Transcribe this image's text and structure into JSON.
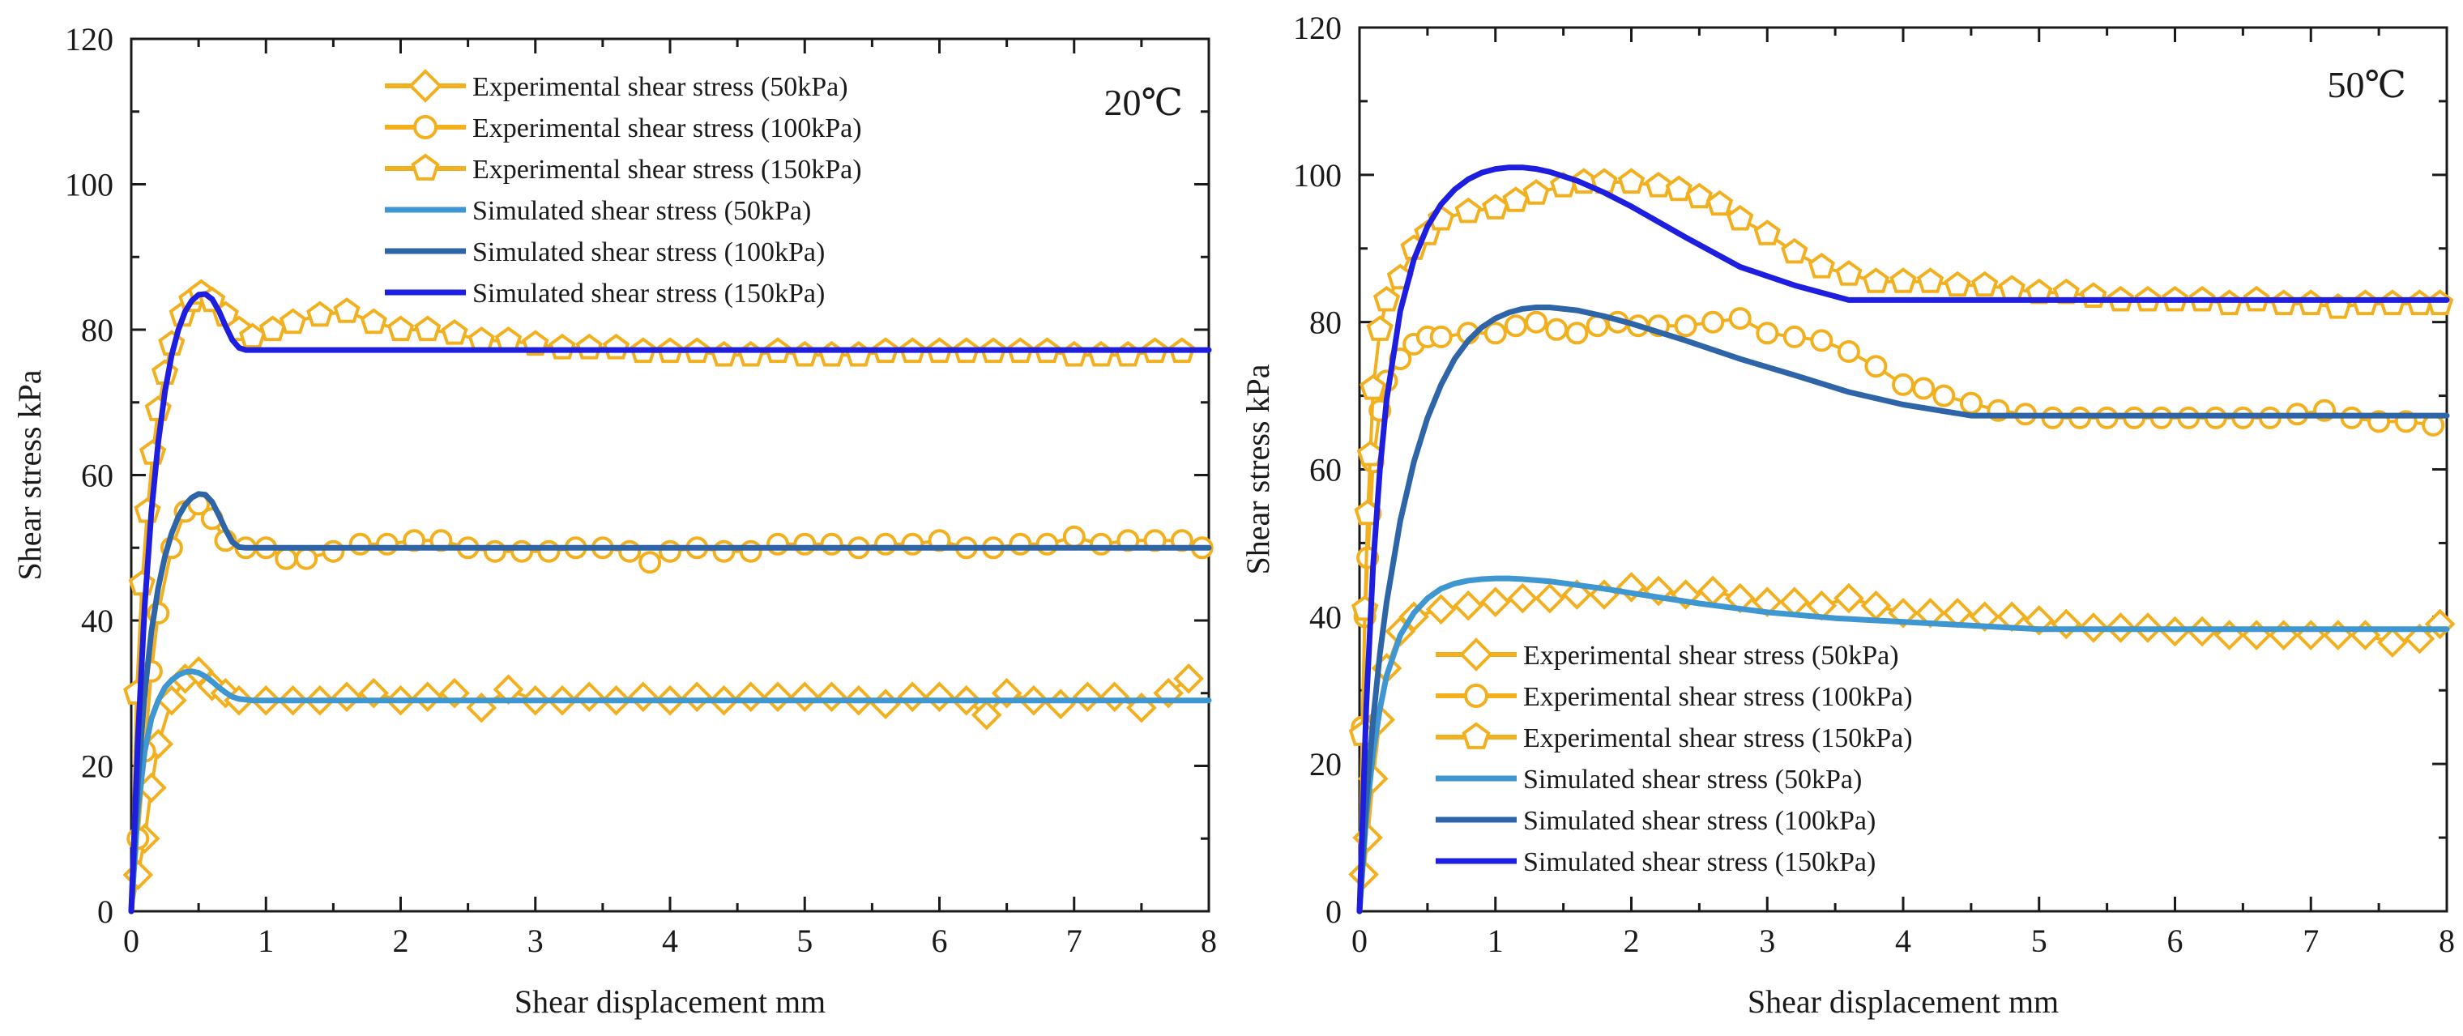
{
  "chart_data": [
    {
      "type": "line",
      "annotation": "20℃",
      "xlabel": "Shear displacement mm",
      "ylabel": "Shear stress kPa",
      "xlim": [
        0,
        8
      ],
      "ylim": [
        0,
        120
      ],
      "x_ticks": [
        "0",
        "1",
        "2",
        "3",
        "4",
        "5",
        "6",
        "7",
        "8"
      ],
      "y_ticks": [
        "0",
        "20",
        "40",
        "60",
        "80",
        "100",
        "120"
      ],
      "grid": false,
      "legend_position": "top-center",
      "series": [
        {
          "name": "Experimental shear stress (50kPa)",
          "kind": "experimental",
          "marker": "diamond",
          "color": "#F2B01E",
          "x": [
            0,
            0.05,
            0.1,
            0.15,
            0.2,
            0.3,
            0.4,
            0.5,
            0.6,
            0.7,
            0.8,
            1.0,
            1.2,
            1.4,
            1.6,
            1.8,
            2.0,
            2.2,
            2.4,
            2.6,
            2.8,
            3.0,
            3.2,
            3.4,
            3.6,
            3.8,
            4.0,
            4.2,
            4.4,
            4.6,
            4.8,
            5.0,
            5.2,
            5.4,
            5.6,
            5.8,
            6.0,
            6.2,
            6.35,
            6.5,
            6.7,
            6.9,
            7.1,
            7.3,
            7.5,
            7.7,
            7.85
          ],
          "y": [
            0,
            5,
            10,
            17,
            23,
            29,
            32,
            33,
            31,
            30,
            29,
            29,
            29,
            29,
            29.5,
            30,
            29,
            29.5,
            30,
            28,
            30.5,
            29,
            29,
            29.5,
            29,
            29.5,
            29,
            29.5,
            29,
            29.5,
            29.5,
            29.5,
            29.5,
            29,
            28.5,
            29.5,
            29.5,
            29,
            27,
            30,
            29,
            28.5,
            29.5,
            29.5,
            28,
            30,
            32
          ]
        },
        {
          "name": "Experimental shear stress (100kPa)",
          "kind": "experimental",
          "marker": "circle",
          "color": "#F2B01E",
          "x": [
            0,
            0.05,
            0.1,
            0.15,
            0.2,
            0.3,
            0.4,
            0.5,
            0.6,
            0.7,
            0.85,
            1.0,
            1.15,
            1.3,
            1.5,
            1.7,
            1.9,
            2.1,
            2.3,
            2.5,
            2.7,
            2.9,
            3.1,
            3.3,
            3.5,
            3.7,
            3.85,
            4.0,
            4.2,
            4.4,
            4.6,
            4.8,
            5.0,
            5.2,
            5.4,
            5.6,
            5.8,
            6.0,
            6.2,
            6.4,
            6.6,
            6.8,
            7.0,
            7.2,
            7.4,
            7.6,
            7.8,
            7.95
          ],
          "y": [
            0,
            10,
            22,
            33,
            41,
            50,
            55,
            56,
            54,
            51,
            50,
            50,
            48.5,
            48.5,
            49.5,
            50.5,
            50.5,
            51,
            51,
            50,
            49.5,
            49.5,
            49.5,
            50,
            50,
            49.5,
            48,
            49.5,
            50,
            49.5,
            49.5,
            50.5,
            50.5,
            50.5,
            50,
            50.5,
            50.5,
            51,
            50,
            50,
            50.5,
            50.5,
            51.5,
            50.5,
            51,
            51,
            51,
            50
          ]
        },
        {
          "name": "Experimental shear stress (150kPa)",
          "kind": "experimental",
          "marker": "pentagon",
          "color": "#F2B01E",
          "x": [
            0,
            0.04,
            0.08,
            0.12,
            0.16,
            0.2,
            0.25,
            0.3,
            0.38,
            0.45,
            0.52,
            0.6,
            0.7,
            0.8,
            0.9,
            1.05,
            1.2,
            1.4,
            1.6,
            1.8,
            2.0,
            2.2,
            2.4,
            2.6,
            2.8,
            3.0,
            3.2,
            3.4,
            3.6,
            3.8,
            4.0,
            4.2,
            4.4,
            4.6,
            4.8,
            5.0,
            5.2,
            5.4,
            5.6,
            5.8,
            6.0,
            6.2,
            6.4,
            6.6,
            6.8,
            7.0,
            7.2,
            7.4,
            7.6,
            7.8
          ],
          "y": [
            0,
            30,
            45,
            55,
            63,
            69,
            74,
            78,
            82,
            84,
            85,
            84,
            82,
            80,
            79,
            80,
            81,
            82,
            82.5,
            81,
            80,
            80,
            79.5,
            78.5,
            78.5,
            78,
            77.5,
            77.5,
            77.5,
            77,
            77,
            77,
            76.5,
            76.5,
            77,
            76.5,
            76.5,
            76.5,
            77,
            77,
            77,
            77,
            77,
            77,
            77,
            76.5,
            76.5,
            76.5,
            77,
            77
          ]
        },
        {
          "name": "Simulated shear stress (50kPa)",
          "kind": "simulated",
          "color": "#3E97D1",
          "x": [
            0,
            0.05,
            0.1,
            0.15,
            0.2,
            0.25,
            0.3,
            0.35,
            0.4,
            0.45,
            0.5,
            0.55,
            0.6,
            0.65,
            0.7,
            0.75,
            0.8,
            0.9,
            1.0,
            2.0,
            4.0,
            6.0,
            8.0
          ],
          "y": [
            0,
            14,
            22,
            26.5,
            29,
            30.8,
            31.8,
            32.5,
            32.9,
            33,
            32.8,
            32.3,
            31.6,
            30.8,
            30.1,
            29.5,
            29.2,
            29,
            29,
            29,
            29,
            29,
            29
          ]
        },
        {
          "name": "Simulated shear stress (100kPa)",
          "kind": "simulated",
          "color": "#2E64A8",
          "x": [
            0,
            0.05,
            0.1,
            0.15,
            0.2,
            0.25,
            0.3,
            0.35,
            0.4,
            0.45,
            0.5,
            0.55,
            0.6,
            0.65,
            0.7,
            0.75,
            0.8,
            0.85,
            0.9,
            1.0,
            2.0,
            4.0,
            6.0,
            8.0
          ],
          "y": [
            0,
            18,
            30,
            38.5,
            44.5,
            48.8,
            52,
            54.3,
            55.9,
            56.9,
            57.4,
            57.3,
            56.3,
            54.5,
            52.5,
            50.8,
            50.1,
            50,
            50,
            50,
            50,
            50,
            50,
            50
          ]
        },
        {
          "name": "Simulated shear stress (150kPa)",
          "kind": "simulated",
          "color": "#1E1EE0",
          "x": [
            0,
            0.05,
            0.1,
            0.15,
            0.2,
            0.25,
            0.3,
            0.35,
            0.4,
            0.45,
            0.5,
            0.55,
            0.6,
            0.65,
            0.7,
            0.75,
            0.8,
            0.85,
            0.9,
            1.0,
            2.0,
            4.0,
            6.0,
            8.0
          ],
          "y": [
            0,
            24,
            42,
            55,
            64.5,
            71.5,
            76.5,
            80,
            82.5,
            84,
            84.8,
            84.9,
            84.2,
            82.6,
            80.5,
            78.6,
            77.5,
            77.2,
            77.2,
            77.2,
            77.2,
            77.2,
            77.2,
            77.2
          ]
        }
      ]
    },
    {
      "type": "line",
      "annotation": "50℃",
      "xlabel": "Shear displacement mm",
      "ylabel": "Shear stress kPa",
      "xlim": [
        0,
        8
      ],
      "ylim": [
        0,
        120
      ],
      "x_ticks": [
        "0",
        "1",
        "2",
        "3",
        "4",
        "5",
        "6",
        "7",
        "8"
      ],
      "y_ticks": [
        "0",
        "20",
        "40",
        "60",
        "80",
        "100",
        "120"
      ],
      "grid": false,
      "legend_position": "bottom-center",
      "series": [
        {
          "name": "Experimental shear stress (50kPa)",
          "kind": "experimental",
          "marker": "diamond",
          "color": "#F2B01E",
          "x": [
            0,
            0.03,
            0.06,
            0.1,
            0.15,
            0.2,
            0.3,
            0.4,
            0.6,
            0.8,
            1.0,
            1.2,
            1.4,
            1.6,
            1.8,
            2.0,
            2.2,
            2.4,
            2.6,
            2.8,
            3.0,
            3.2,
            3.4,
            3.6,
            3.8,
            4.0,
            4.2,
            4.4,
            4.6,
            4.8,
            5.0,
            5.2,
            5.4,
            5.6,
            5.8,
            6.0,
            6.2,
            6.4,
            6.6,
            6.8,
            7.0,
            7.2,
            7.4,
            7.6,
            7.8,
            7.95
          ],
          "y": [
            0,
            5,
            10,
            18,
            26,
            33,
            38,
            40,
            41,
            41.5,
            42,
            42.5,
            42.5,
            43,
            43,
            44,
            43.5,
            43,
            43.5,
            42.5,
            42,
            42,
            41.5,
            42.5,
            41.5,
            40.5,
            40.5,
            40.5,
            40,
            40,
            39.5,
            39,
            38.5,
            38.5,
            38.5,
            38,
            38,
            37.5,
            37.5,
            37.5,
            37.5,
            37.5,
            37.5,
            36.5,
            37,
            39
          ]
        },
        {
          "name": "Experimental shear stress (100kPa)",
          "kind": "experimental",
          "marker": "circle",
          "color": "#F2B01E",
          "x": [
            0,
            0.02,
            0.04,
            0.06,
            0.08,
            0.1,
            0.15,
            0.2,
            0.3,
            0.4,
            0.5,
            0.6,
            0.8,
            1.0,
            1.15,
            1.3,
            1.45,
            1.6,
            1.75,
            1.9,
            2.05,
            2.2,
            2.4,
            2.6,
            2.8,
            3.0,
            3.2,
            3.4,
            3.6,
            3.8,
            4.0,
            4.15,
            4.3,
            4.5,
            4.7,
            4.9,
            5.1,
            5.3,
            5.5,
            5.7,
            5.9,
            6.1,
            6.3,
            6.5,
            6.7,
            6.9,
            7.1,
            7.3,
            7.5,
            7.7,
            7.9
          ],
          "y": [
            0,
            25,
            40,
            48,
            54,
            61,
            68,
            72,
            75,
            77,
            78,
            78,
            78.5,
            78.5,
            79.5,
            80,
            79,
            78.5,
            79.5,
            80,
            79.5,
            79.5,
            79.5,
            80,
            80.5,
            78.5,
            78,
            77.5,
            76,
            74,
            71.5,
            71,
            70,
            69,
            68,
            67.5,
            67,
            67,
            67,
            67,
            67,
            67,
            67,
            67,
            67,
            67.5,
            68,
            67,
            66.5,
            66.5,
            66
          ]
        },
        {
          "name": "Experimental shear stress (150kPa)",
          "kind": "experimental",
          "marker": "pentagon",
          "color": "#F2B01E",
          "x": [
            0,
            0.02,
            0.04,
            0.06,
            0.08,
            0.1,
            0.15,
            0.2,
            0.3,
            0.4,
            0.5,
            0.6,
            0.8,
            1.0,
            1.15,
            1.3,
            1.5,
            1.65,
            1.8,
            2.0,
            2.2,
            2.35,
            2.5,
            2.65,
            2.8,
            3.0,
            3.2,
            3.4,
            3.6,
            3.8,
            4.0,
            4.2,
            4.4,
            4.6,
            4.8,
            5.0,
            5.2,
            5.4,
            5.6,
            5.8,
            6.0,
            6.2,
            6.4,
            6.6,
            6.8,
            7.0,
            7.2,
            7.4,
            7.6,
            7.8,
            7.95
          ],
          "y": [
            0,
            24,
            41,
            54,
            62,
            71,
            79,
            83,
            86,
            90,
            92,
            94,
            95,
            95.5,
            96.5,
            97.5,
            98.5,
            99,
            99,
            99,
            98.5,
            98,
            97,
            96,
            94,
            92,
            89.5,
            87.5,
            86.5,
            85.5,
            85.5,
            85.5,
            85,
            85,
            84.5,
            84,
            84,
            83.5,
            83,
            83,
            83,
            83,
            82.5,
            83,
            82.5,
            82.5,
            82,
            82.5,
            82.5,
            82.5,
            82.5
          ]
        },
        {
          "name": "Simulated shear stress (50kPa)",
          "kind": "simulated",
          "color": "#3E97D1",
          "x": [
            0,
            0.05,
            0.1,
            0.15,
            0.2,
            0.3,
            0.4,
            0.5,
            0.6,
            0.7,
            0.8,
            0.9,
            1.0,
            1.1,
            1.2,
            1.4,
            1.6,
            1.8,
            2.0,
            2.5,
            3.0,
            3.5,
            4.0,
            4.5,
            5.0,
            5.5,
            6.0,
            7.0,
            8.0
          ],
          "y": [
            0,
            13,
            21.5,
            27.5,
            32,
            37.5,
            40.5,
            42.5,
            43.8,
            44.5,
            44.9,
            45.1,
            45.2,
            45.2,
            45.1,
            44.8,
            44.3,
            43.8,
            43.2,
            41.8,
            40.6,
            39.8,
            39.3,
            38.8,
            38.3,
            38.3,
            38.3,
            38.3,
            38.3
          ]
        },
        {
          "name": "Simulated shear stress (100kPa)",
          "kind": "simulated",
          "color": "#2E64A8",
          "x": [
            0,
            0.05,
            0.1,
            0.15,
            0.2,
            0.3,
            0.4,
            0.5,
            0.6,
            0.7,
            0.8,
            0.9,
            1.0,
            1.1,
            1.2,
            1.3,
            1.4,
            1.6,
            1.8,
            2.0,
            2.4,
            2.8,
            3.2,
            3.6,
            4.0,
            4.5,
            5.0,
            6.0,
            7.0,
            8.0
          ],
          "y": [
            0,
            15,
            26,
            35,
            42,
            53,
            61,
            67,
            71.5,
            75,
            77.5,
            79.3,
            80.5,
            81.3,
            81.8,
            82,
            82,
            81.6,
            80.8,
            79.8,
            77.5,
            75,
            72.8,
            70.5,
            68.8,
            67.3,
            67.3,
            67.3,
            67.3,
            67.3
          ]
        },
        {
          "name": "Simulated shear stress (150kPa)",
          "kind": "simulated",
          "color": "#1E1EE0",
          "x": [
            0,
            0.05,
            0.1,
            0.15,
            0.2,
            0.3,
            0.4,
            0.5,
            0.6,
            0.7,
            0.8,
            0.9,
            1.0,
            1.1,
            1.2,
            1.3,
            1.4,
            1.6,
            1.8,
            2.0,
            2.4,
            2.8,
            3.2,
            3.6,
            4.0,
            5.0,
            6.0,
            7.0,
            8.0
          ],
          "y": [
            0,
            28,
            47,
            60,
            69.5,
            81.5,
            88.5,
            93,
            96,
            98,
            99.4,
            100.3,
            100.8,
            101,
            101,
            100.8,
            100.4,
            99.2,
            97.6,
            95.7,
            91.5,
            87.5,
            85,
            83,
            83,
            83,
            83,
            83,
            83
          ]
        }
      ]
    }
  ]
}
